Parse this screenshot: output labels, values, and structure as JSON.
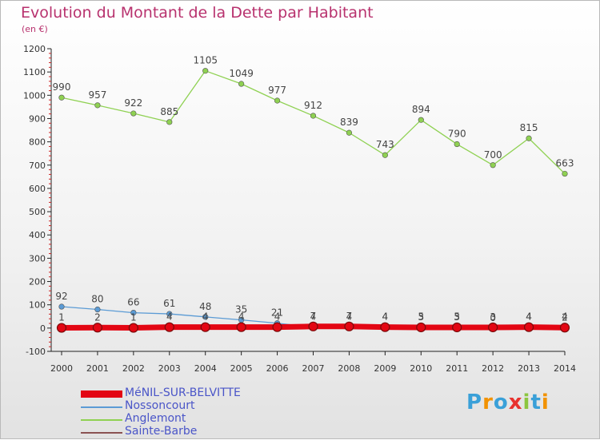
{
  "title": "Evolution du Montant de la Dette par Habitant",
  "unit_label": "(en €)",
  "logo": {
    "text": "Proxiti",
    "letters": [
      "P",
      "r",
      "o",
      "x",
      "i",
      "t",
      "i"
    ],
    "colors": [
      "#3aa0d8",
      "#f29200",
      "#3aa0d8",
      "#e8322e",
      "#8cc63f",
      "#3aa0d8",
      "#f29200"
    ]
  },
  "chart_data": {
    "type": "line",
    "title": "Evolution du Montant de la Dette par Habitant",
    "ylabel": "(en €)",
    "xlabel": "",
    "x": [
      2000,
      2001,
      2002,
      2003,
      2004,
      2005,
      2006,
      2007,
      2008,
      2009,
      2010,
      2011,
      2012,
      2013,
      2014
    ],
    "ylim": [
      -100,
      1200
    ],
    "yticks": [
      -100,
      0,
      100,
      200,
      300,
      400,
      500,
      600,
      700,
      800,
      900,
      1000,
      1100,
      1200
    ],
    "grid": false,
    "legend_position": "bottom-left",
    "series": [
      {
        "name": "MéNIL-SUR-BELVITTE",
        "color": "#e30613",
        "style": "thick",
        "values": [
          1,
          2,
          1,
          4,
          4,
          4,
          4,
          7,
          7,
          4,
          3,
          3,
          3,
          4,
          2
        ],
        "labels": [
          "1",
          "2",
          "1",
          "4",
          "4",
          "4",
          "4",
          "7",
          "7",
          "4",
          "3",
          "3",
          "3",
          "4",
          "2"
        ]
      },
      {
        "name": "Nossoncourt",
        "color": "#5b9bd5",
        "style": "normal",
        "values": [
          92,
          80,
          66,
          61,
          48,
          35,
          21,
          4,
          4,
          4,
          5,
          5,
          0,
          4,
          4
        ],
        "labels": [
          "92",
          "80",
          "66",
          "61",
          "48",
          "35",
          "21",
          "4",
          "4",
          "4",
          "5",
          "5",
          "0",
          "4",
          "4"
        ]
      },
      {
        "name": "Anglemont",
        "color": "#8fd152",
        "style": "normal",
        "values": [
          990,
          957,
          922,
          885,
          1105,
          1049,
          977,
          912,
          839,
          743,
          894,
          790,
          700,
          815,
          663
        ],
        "labels": [
          "990",
          "957",
          "922",
          "885",
          "1105",
          "1049",
          "977",
          "912",
          "839",
          "743",
          "894",
          "790",
          "700",
          "815",
          "663"
        ]
      },
      {
        "name": "Sainte-Barbe",
        "color": "#8a5252",
        "style": "normal",
        "values": [
          0,
          0,
          0,
          0,
          0,
          0,
          0,
          0,
          0,
          0,
          0,
          0,
          0,
          0,
          0
        ],
        "labels": []
      }
    ]
  }
}
